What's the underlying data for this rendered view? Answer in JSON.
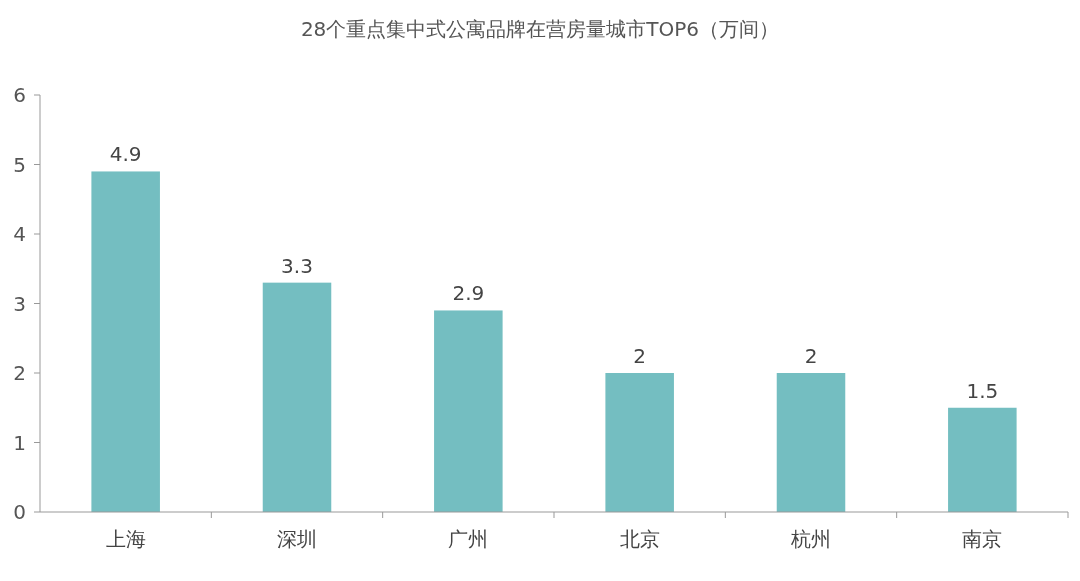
{
  "chart_data": {
    "type": "bar",
    "title": "28个重点集中式公寓品牌在营房量城市TOP6（万间）",
    "categories": [
      "上海",
      "深圳",
      "广州",
      "北京",
      "杭州",
      "南京"
    ],
    "values": [
      4.9,
      3.3,
      2.9,
      2,
      2,
      1.5
    ],
    "color": "#74bec1",
    "ylim": [
      0,
      6
    ],
    "yticks": [
      0,
      1,
      2,
      3,
      4,
      5,
      6
    ],
    "data_labels": true
  }
}
